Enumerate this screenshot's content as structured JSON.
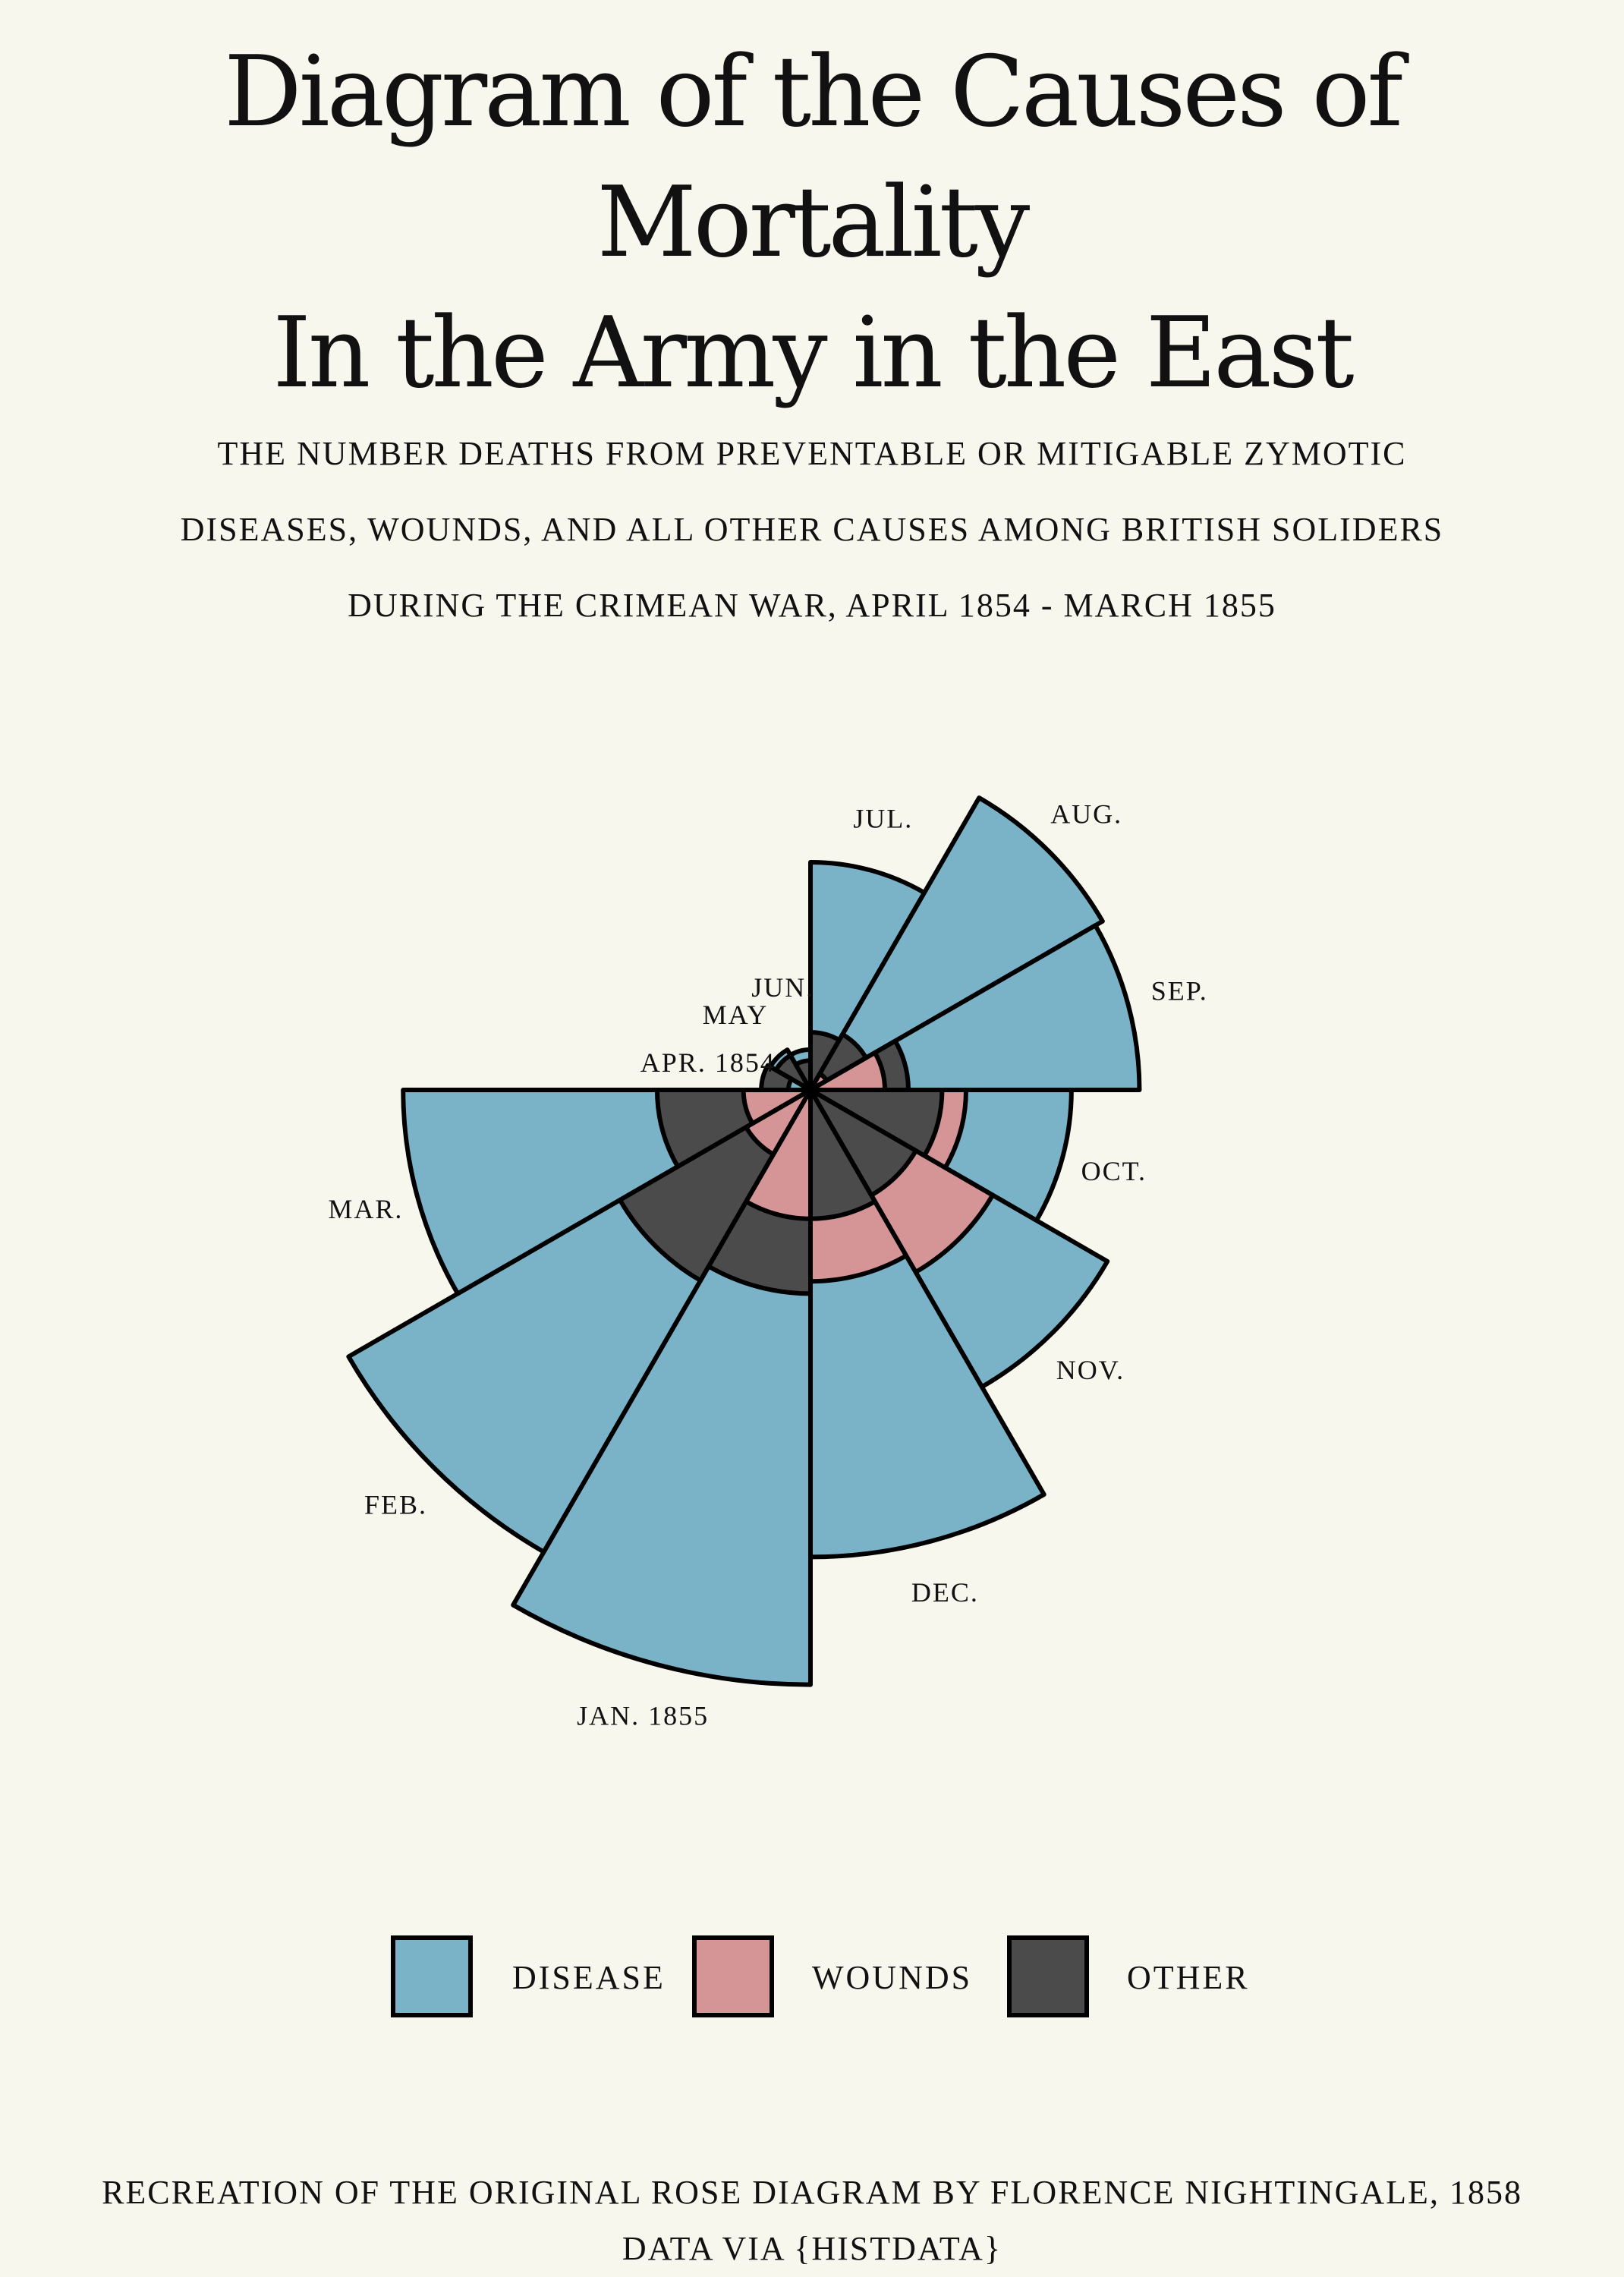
{
  "title": {
    "line1": "Diagram of the Causes of Mortality",
    "line2": "In the Army in the East"
  },
  "subtitle": {
    "line1": "the number deaths from preventable or mitigable zymotic",
    "line2": "diseases, wounds, and all other causes among british soliders",
    "line3": "during the crimean war, april 1854 - march 1855"
  },
  "legend": [
    {
      "label": "disease",
      "color": "#7ab3c8"
    },
    {
      "label": "wounds",
      "color": "#d59496"
    },
    {
      "label": "other",
      "color": "#4c4b4b"
    }
  ],
  "footer": {
    "line1": "recreation of the original rose diagram by florence nightingale, 1858",
    "line2": "data via {histdata}"
  },
  "chart_data": {
    "type": "polar-area",
    "order": "clockwise from west (9 o'clock), one 30° wedge per month",
    "months": [
      "APR. 1854",
      "MAY",
      "JUN.",
      "JUL.",
      "AUG.",
      "SEP.",
      "OCT.",
      "NOV.",
      "DEC.",
      "JAN. 1855",
      "FEB.",
      "MAR."
    ],
    "series": [
      {
        "name": "disease",
        "values": [
          1.4,
          6.2,
          4.7,
          150,
          329,
          313,
          197,
          340,
          631,
          1023,
          823,
          480
        ]
      },
      {
        "name": "wounds",
        "values": [
          0,
          0,
          0,
          0,
          1,
          16,
          70,
          128,
          106,
          48,
          16,
          13
        ]
      },
      {
        "name": "other",
        "values": [
          7,
          4.6,
          2.5,
          9.6,
          11.9,
          27.7,
          50.1,
          42.8,
          48,
          120,
          140,
          68
        ]
      }
    ],
    "colors": {
      "disease": "#7ab3c8",
      "wounds": "#d59496",
      "other": "#4c4b4b"
    }
  }
}
